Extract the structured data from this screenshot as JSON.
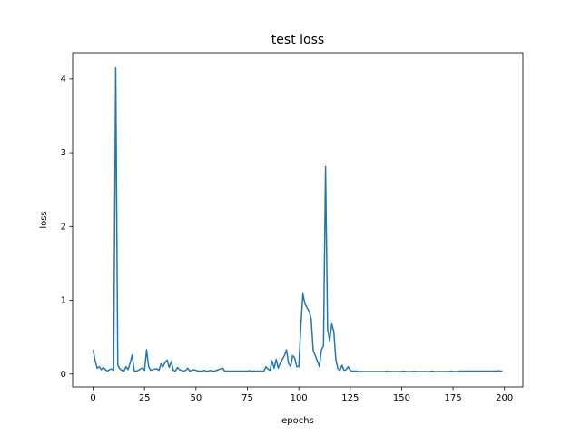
{
  "chart_data": {
    "type": "line",
    "title": "test loss",
    "x_label": "epochs",
    "y_label": "loss",
    "color": "#1f77b4",
    "x": [
      0,
      1,
      2,
      3,
      4,
      5,
      6,
      7,
      8,
      9,
      10,
      11,
      12,
      13,
      14,
      15,
      16,
      17,
      18,
      19,
      20,
      21,
      22,
      23,
      24,
      25,
      26,
      27,
      28,
      29,
      30,
      31,
      32,
      33,
      34,
      35,
      36,
      37,
      38,
      39,
      40,
      41,
      42,
      43,
      44,
      45,
      46,
      47,
      48,
      49,
      50,
      51,
      52,
      53,
      54,
      55,
      56,
      57,
      58,
      59,
      60,
      61,
      62,
      63,
      64,
      65,
      66,
      67,
      68,
      69,
      70,
      71,
      72,
      73,
      74,
      75,
      76,
      77,
      78,
      79,
      80,
      81,
      82,
      83,
      84,
      85,
      86,
      87,
      88,
      89,
      90,
      91,
      92,
      93,
      94,
      95,
      96,
      97,
      98,
      99,
      100,
      101,
      102,
      103,
      104,
      105,
      106,
      107,
      108,
      109,
      110,
      111,
      112,
      113,
      114,
      115,
      116,
      117,
      118,
      119,
      120,
      121,
      122,
      123,
      124,
      125,
      126,
      127,
      128,
      129,
      130,
      131,
      132,
      133,
      134,
      135,
      136,
      137,
      138,
      139,
      140,
      141,
      142,
      143,
      144,
      145,
      146,
      147,
      148,
      149,
      150,
      151,
      152,
      153,
      154,
      155,
      156,
      157,
      158,
      159,
      160,
      161,
      162,
      163,
      164,
      165,
      166,
      167,
      168,
      169,
      170,
      171,
      172,
      173,
      174,
      175,
      176,
      177,
      178,
      179,
      180,
      181,
      182,
      183,
      184,
      185,
      186,
      187,
      188,
      189,
      190,
      191,
      192,
      193,
      194,
      195,
      196,
      197,
      198,
      199
    ],
    "values": [
      0.33,
      0.18,
      0.08,
      0.1,
      0.06,
      0.09,
      0.06,
      0.04,
      0.06,
      0.07,
      0.05,
      4.15,
      0.12,
      0.07,
      0.05,
      0.04,
      0.1,
      0.06,
      0.15,
      0.26,
      0.04,
      0.04,
      0.05,
      0.07,
      0.08,
      0.05,
      0.33,
      0.1,
      0.05,
      0.06,
      0.07,
      0.07,
      0.05,
      0.14,
      0.1,
      0.16,
      0.19,
      0.09,
      0.17,
      0.05,
      0.04,
      0.09,
      0.06,
      0.05,
      0.04,
      0.05,
      0.08,
      0.04,
      0.05,
      0.06,
      0.05,
      0.04,
      0.04,
      0.04,
      0.05,
      0.04,
      0.04,
      0.05,
      0.04,
      0.04,
      0.05,
      0.06,
      0.07,
      0.08,
      0.04,
      0.04,
      0.04,
      0.04,
      0.04,
      0.04,
      0.04,
      0.04,
      0.04,
      0.04,
      0.04,
      0.04,
      0.045,
      0.04,
      0.04,
      0.04,
      0.04,
      0.04,
      0.04,
      0.04,
      0.1,
      0.07,
      0.05,
      0.18,
      0.08,
      0.2,
      0.08,
      0.15,
      0.2,
      0.25,
      0.33,
      0.15,
      0.1,
      0.25,
      0.22,
      0.1,
      0.1,
      0.65,
      1.09,
      0.95,
      0.9,
      0.85,
      0.75,
      0.32,
      0.25,
      0.18,
      0.1,
      0.33,
      0.38,
      2.81,
      0.6,
      0.45,
      0.68,
      0.58,
      0.2,
      0.07,
      0.05,
      0.12,
      0.05,
      0.06,
      0.1,
      0.05,
      0.04,
      0.04,
      0.04,
      0.035,
      0.035,
      0.035,
      0.035,
      0.035,
      0.035,
      0.035,
      0.035,
      0.035,
      0.035,
      0.035,
      0.035,
      0.035,
      0.035,
      0.04,
      0.035,
      0.035,
      0.035,
      0.035,
      0.035,
      0.035,
      0.035,
      0.04,
      0.035,
      0.035,
      0.035,
      0.035,
      0.04,
      0.035,
      0.035,
      0.035,
      0.035,
      0.035,
      0.035,
      0.035,
      0.035,
      0.04,
      0.035,
      0.035,
      0.035,
      0.035,
      0.035,
      0.035,
      0.035,
      0.035,
      0.04,
      0.035,
      0.035,
      0.035,
      0.04,
      0.04,
      0.04,
      0.04,
      0.04,
      0.04,
      0.04,
      0.04,
      0.04,
      0.04,
      0.04,
      0.04,
      0.04,
      0.04,
      0.04,
      0.04,
      0.04,
      0.04,
      0.04,
      0.045,
      0.04,
      0.04
    ],
    "xlim": [
      -9.95,
      208.95
    ],
    "ylim": [
      -0.175,
      4.355
    ],
    "xticks": [
      0,
      25,
      50,
      75,
      100,
      125,
      150,
      175,
      200
    ],
    "yticks": [
      0,
      1,
      2,
      3,
      4
    ]
  }
}
